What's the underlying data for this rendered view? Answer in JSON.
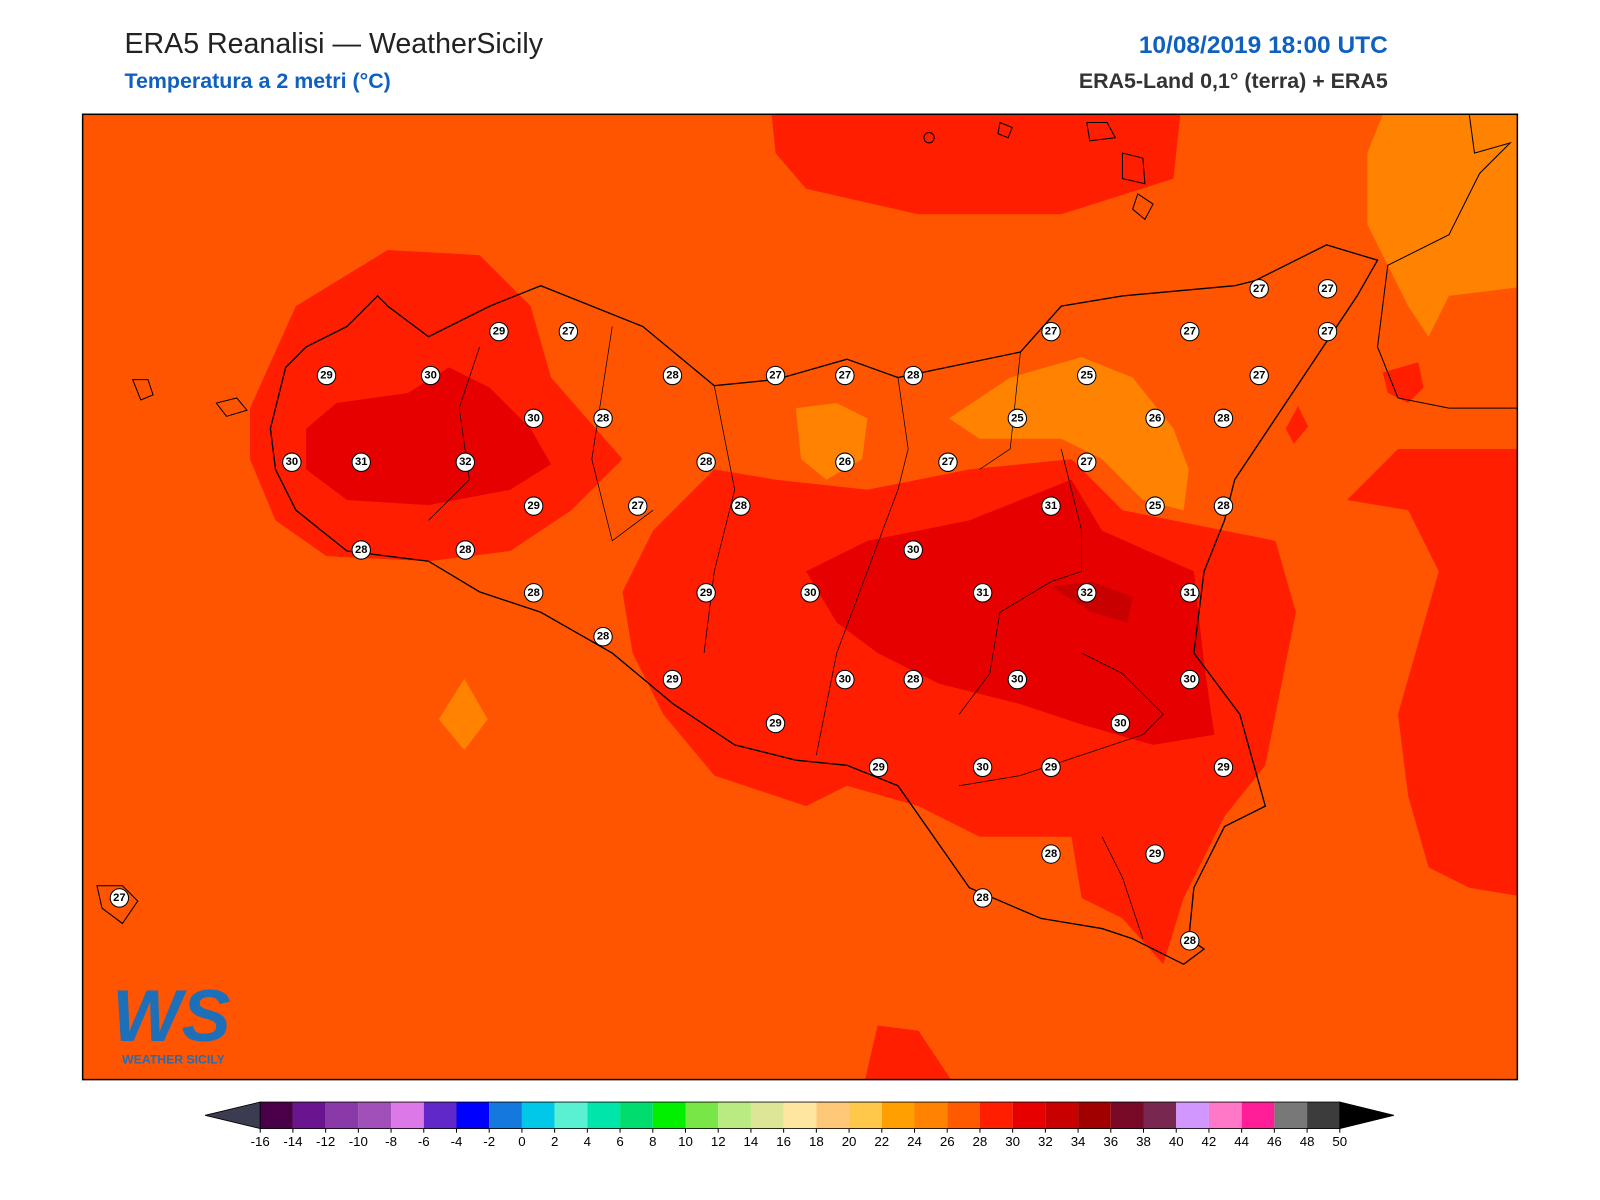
{
  "header": {
    "title": "ERA5 Reanalisi — WeatherSicily",
    "subtitle": "Temperatura a 2 metri (°C)",
    "datetime": "10/08/2019 18:00 UTC",
    "source": "ERA5-Land 0,1° (terra) + ERA5"
  },
  "stations": [
    29,
    27,
    29,
    30,
    28,
    27,
    27,
    28,
    27,
    27,
    27,
    27,
    27,
    25,
    27,
    30,
    28,
    25,
    26,
    28,
    30,
    31,
    32,
    28,
    26,
    27,
    27,
    29,
    27,
    28,
    31,
    25,
    28,
    28,
    28,
    30,
    28,
    29,
    30,
    31,
    32,
    31,
    28,
    29,
    30,
    28,
    30,
    30,
    29,
    30,
    29,
    30,
    29,
    29,
    28,
    29,
    28,
    27,
    28
  ],
  "colorbar": {
    "ticks": [
      -16,
      -14,
      -12,
      -10,
      -8,
      -6,
      -4,
      -2,
      0,
      2,
      4,
      6,
      8,
      10,
      12,
      14,
      16,
      18,
      20,
      22,
      24,
      26,
      28,
      30,
      32,
      34,
      36,
      38,
      40,
      42,
      44,
      46,
      48,
      50
    ],
    "colors": [
      "#4a0048",
      "#6a1490",
      "#8a3aa8",
      "#a050b8",
      "#dc78e8",
      "#6028c8",
      "#0000ff",
      "#1478dc",
      "#00c8e6",
      "#5af0d2",
      "#00e6aa",
      "#00dc6e",
      "#00f000",
      "#78e646",
      "#b9eb82",
      "#dce696",
      "#ffe6a0",
      "#ffc878",
      "#ffc84b",
      "#ffa000",
      "#ff8200",
      "#ff5a00",
      "#ff1e00",
      "#e60000",
      "#c80000",
      "#a00000",
      "#780a28",
      "#782850",
      "#d296ff",
      "#ff78c8",
      "#ff1e96",
      "#787878",
      "#3c3c3c"
    ],
    "under_color": "#3c3c50",
    "over_color": "#000000"
  },
  "logo": {
    "mark": "WS",
    "name": "WEATHER SICILY"
  }
}
